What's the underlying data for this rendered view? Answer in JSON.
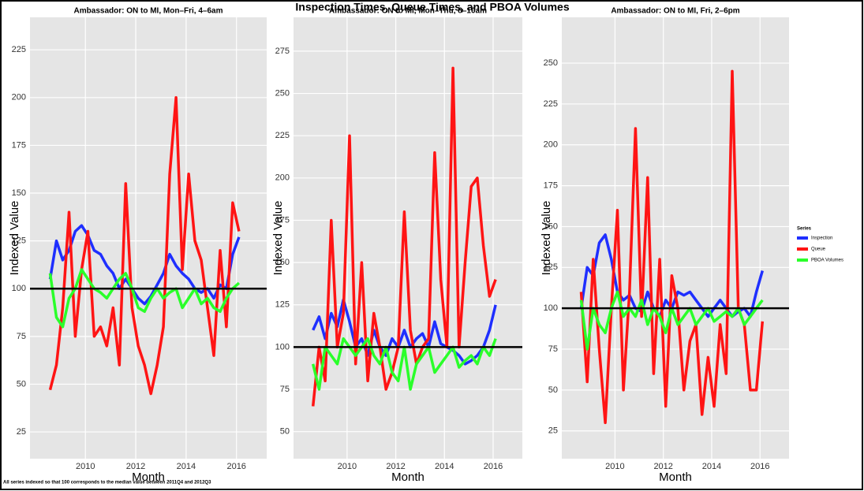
{
  "title": "Inspection Times, Queue Times, and PBOA Volumes",
  "footnote": "All series indexed so that 100 corresponds to the median value between 2011Q4 and 2012Q3",
  "legend_title": "Series",
  "chart_data": [
    {
      "type": "line",
      "title": "Ambassador: ON to MI, Mon–Fri, 4–6am",
      "x_label": "Month",
      "y_label": "Indexed Value",
      "x": [
        2008.6,
        2008.85,
        2009.1,
        2009.35,
        2009.6,
        2009.85,
        2010.1,
        2010.35,
        2010.6,
        2010.85,
        2011.1,
        2011.35,
        2011.6,
        2011.85,
        2012.1,
        2012.35,
        2012.6,
        2012.85,
        2013.1,
        2013.35,
        2013.6,
        2013.85,
        2014.1,
        2014.35,
        2014.6,
        2014.85,
        2015.1,
        2015.35,
        2015.6,
        2015.85,
        2016.1
      ],
      "series": [
        {
          "name": "Inspection",
          "color": "#1f2fff",
          "values": [
            105,
            125,
            115,
            120,
            130,
            133,
            128,
            120,
            118,
            112,
            108,
            100,
            105,
            100,
            95,
            92,
            96,
            102,
            108,
            118,
            112,
            108,
            105,
            100,
            98,
            100,
            95,
            102,
            100,
            118,
            127
          ]
        },
        {
          "name": "Queue",
          "color": "#ff1414",
          "values": [
            47,
            60,
            90,
            140,
            75,
            110,
            130,
            75,
            80,
            70,
            90,
            60,
            155,
            90,
            70,
            60,
            45,
            60,
            80,
            160,
            200,
            110,
            160,
            125,
            115,
            90,
            65,
            120,
            80,
            145,
            130
          ]
        },
        {
          "name": "PBOA Volumes",
          "color": "#2aff2a",
          "values": [
            108,
            85,
            80,
            95,
            100,
            110,
            105,
            100,
            98,
            95,
            100,
            105,
            108,
            100,
            90,
            88,
            95,
            100,
            95,
            98,
            100,
            90,
            95,
            100,
            92,
            95,
            90,
            88,
            95,
            100,
            103
          ]
        }
      ],
      "xlim": [
        2007.8,
        2017.2
      ],
      "xticks": [
        2010,
        2012,
        2014,
        2016
      ],
      "ylim": [
        11,
        242
      ],
      "yticks": [
        25,
        50,
        75,
        100,
        125,
        150,
        175,
        200,
        225
      ],
      "grid": true,
      "reference_line": 100
    },
    {
      "type": "line",
      "title": "Ambassador: ON to MI, Mon–Thu, 8–10am",
      "x_label": "Month",
      "y_label": "Indexed Value",
      "x": [
        2008.6,
        2008.85,
        2009.1,
        2009.35,
        2009.6,
        2009.85,
        2010.1,
        2010.35,
        2010.6,
        2010.85,
        2011.1,
        2011.35,
        2011.6,
        2011.85,
        2012.1,
        2012.35,
        2012.6,
        2012.85,
        2013.1,
        2013.35,
        2013.6,
        2013.85,
        2014.1,
        2014.35,
        2014.6,
        2014.85,
        2015.1,
        2015.35,
        2015.6,
        2015.85,
        2016.1
      ],
      "series": [
        {
          "name": "Inspection",
          "color": "#1f2fff",
          "values": [
            110,
            118,
            105,
            120,
            112,
            128,
            115,
            100,
            105,
            95,
            110,
            100,
            95,
            105,
            100,
            110,
            100,
            105,
            108,
            100,
            115,
            102,
            100,
            98,
            95,
            90,
            92,
            95,
            100,
            110,
            125
          ]
        },
        {
          "name": "Queue",
          "color": "#ff1414",
          "values": [
            65,
            100,
            80,
            175,
            100,
            120,
            225,
            90,
            150,
            80,
            120,
            100,
            75,
            85,
            100,
            180,
            110,
            90,
            100,
            105,
            215,
            140,
            100,
            265,
            100,
            150,
            195,
            200,
            160,
            130,
            140
          ]
        },
        {
          "name": "PBOA Volumes",
          "color": "#2aff2a",
          "values": [
            90,
            75,
            100,
            95,
            90,
            105,
            100,
            95,
            100,
            105,
            95,
            90,
            100,
            85,
            80,
            100,
            75,
            90,
            95,
            100,
            85,
            90,
            95,
            100,
            88,
            92,
            95,
            90,
            100,
            95,
            105
          ]
        }
      ],
      "xlim": [
        2007.8,
        2017.2
      ],
      "xticks": [
        2010,
        2012,
        2014,
        2016
      ],
      "ylim": [
        34,
        295
      ],
      "yticks": [
        50,
        75,
        100,
        125,
        150,
        175,
        200,
        225,
        250,
        275
      ],
      "grid": true,
      "reference_line": 100
    },
    {
      "type": "line",
      "title": "Ambassador: ON to MI, Fri, 2–6pm",
      "x_label": "Month",
      "y_label": "Indexed Value",
      "x": [
        2008.6,
        2008.85,
        2009.1,
        2009.35,
        2009.6,
        2009.85,
        2010.1,
        2010.35,
        2010.6,
        2010.85,
        2011.1,
        2011.35,
        2011.6,
        2011.85,
        2012.1,
        2012.35,
        2012.6,
        2012.85,
        2013.1,
        2013.35,
        2013.6,
        2013.85,
        2014.1,
        2014.35,
        2014.6,
        2014.85,
        2015.1,
        2015.35,
        2015.6,
        2015.85,
        2016.1
      ],
      "series": [
        {
          "name": "Inspection",
          "color": "#1f2fff",
          "values": [
            100,
            125,
            120,
            140,
            145,
            130,
            110,
            105,
            108,
            100,
            98,
            110,
            100,
            95,
            105,
            100,
            110,
            108,
            110,
            105,
            100,
            95,
            100,
            105,
            100,
            95,
            98,
            100,
            95,
            110,
            123
          ]
        },
        {
          "name": "Queue",
          "color": "#ff1414",
          "values": [
            110,
            55,
            130,
            75,
            30,
            100,
            160,
            50,
            110,
            210,
            95,
            180,
            60,
            130,
            40,
            120,
            100,
            50,
            80,
            90,
            35,
            70,
            40,
            90,
            60,
            245,
            100,
            90,
            50,
            50,
            92
          ]
        },
        {
          "name": "PBOA Volumes",
          "color": "#2aff2a",
          "values": [
            105,
            75,
            100,
            90,
            85,
            100,
            110,
            95,
            100,
            95,
            105,
            90,
            100,
            95,
            85,
            100,
            90,
            95,
            100,
            90,
            95,
            100,
            92,
            95,
            98,
            95,
            100,
            90,
            95,
            100,
            105
          ]
        }
      ],
      "xlim": [
        2007.8,
        2017.2
      ],
      "xticks": [
        2010,
        2012,
        2014,
        2016
      ],
      "ylim": [
        8,
        278
      ],
      "yticks": [
        25,
        50,
        75,
        100,
        125,
        150,
        175,
        200,
        225,
        250
      ],
      "grid": true,
      "reference_line": 100
    }
  ]
}
